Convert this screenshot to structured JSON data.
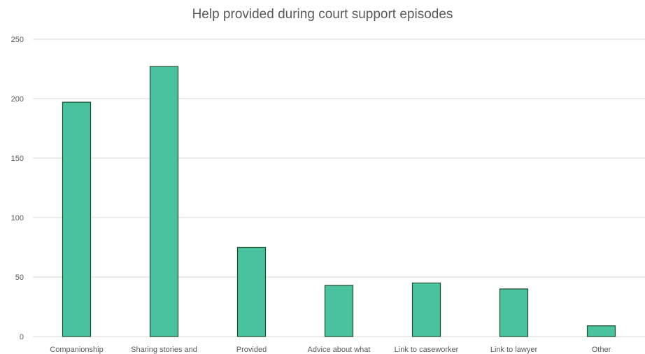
{
  "chart_data": {
    "type": "bar",
    "title": "Help provided during court support episodes",
    "xlabel": "",
    "ylabel": "",
    "ylim": [
      0,
      250
    ],
    "yticks": [
      0,
      50,
      100,
      150,
      200,
      250
    ],
    "grid": true,
    "legend": "none",
    "bar_color": "#4bc29f",
    "bar_edge_color": "#1e4d2b",
    "categories": [
      "Companionship",
      "Sharing stories and",
      "Provided",
      "Advice about what",
      "Link to caseworker",
      "Link to lawyer",
      "Other"
    ],
    "values": [
      197,
      227,
      75,
      43,
      45,
      40,
      9
    ]
  }
}
